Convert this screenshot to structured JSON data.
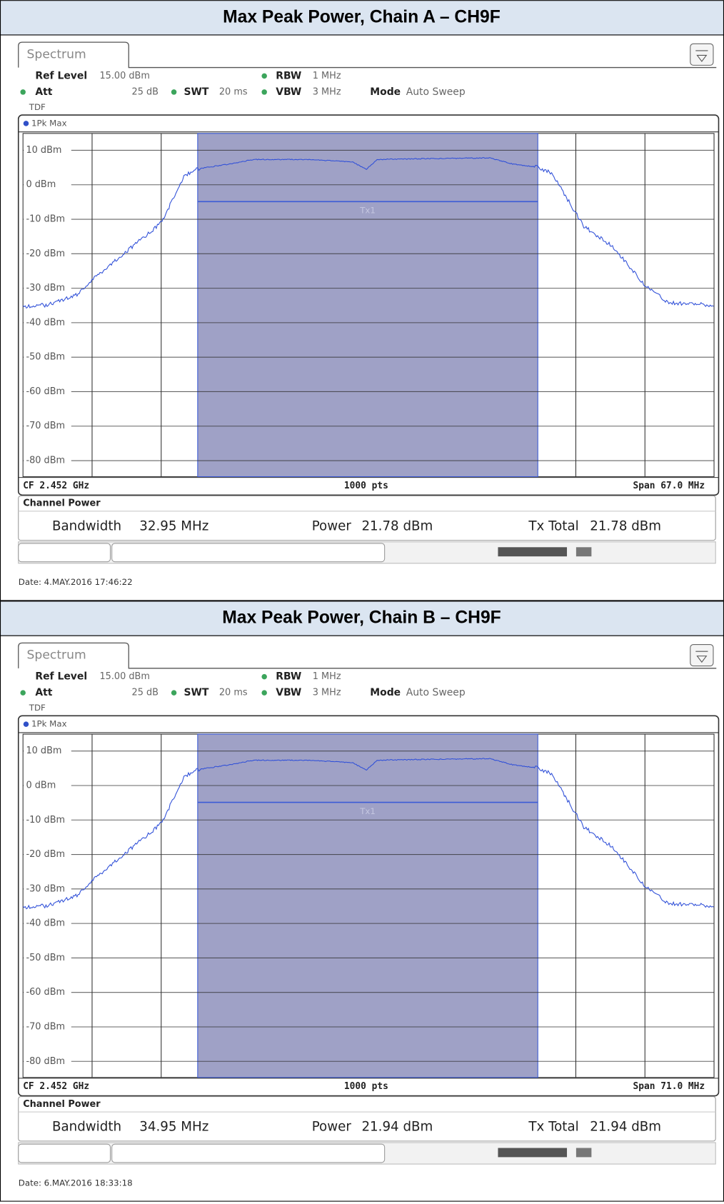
{
  "panels": [
    {
      "title": "Max Peak Power, Chain A – CH9F",
      "tab": "Spectrum",
      "ref_level_label": "Ref Level",
      "ref_level": "15.00 dBm",
      "att_label": "Att",
      "att": "25 dB",
      "swt_label": "SWT",
      "swt": "20 ms",
      "rbw_label": "RBW",
      "rbw": "1 MHz",
      "vbw_label": "VBW",
      "vbw": "3 MHz",
      "mode_label": "Mode",
      "mode": "Auto Sweep",
      "tdf": "TDF",
      "trace": "1Pk Max",
      "y_labels": [
        "10 dBm",
        "0 dBm",
        "-10 dBm",
        "-20 dBm",
        "-30 dBm",
        "-40 dBm",
        "-50 dBm",
        "-60 dBm",
        "-70 dBm",
        "-80 dBm"
      ],
      "marker": "Tx1",
      "cf": "CF 2.452 GHz",
      "points": "1000 pts",
      "span": "Span 67.0 MHz",
      "result_title": "Channel Power",
      "bandwidth_label": "Bandwidth",
      "bandwidth": "32.95 MHz",
      "power_label": "Power",
      "power": "21.78 dBm",
      "tx_total_label": "Tx Total",
      "tx_total": "21.78 dBm",
      "date": "Date: 4.MAY.2016 17:46:22"
    },
    {
      "title": "Max Peak Power, Chain B – CH9F",
      "tab": "Spectrum",
      "ref_level_label": "Ref Level",
      "ref_level": "15.00 dBm",
      "att_label": "Att",
      "att": "25 dB",
      "swt_label": "SWT",
      "swt": "20 ms",
      "rbw_label": "RBW",
      "rbw": "1 MHz",
      "vbw_label": "VBW",
      "vbw": "3 MHz",
      "mode_label": "Mode",
      "mode": "Auto Sweep",
      "tdf": "TDF",
      "trace": "1Pk Max",
      "y_labels": [
        "10 dBm",
        "0 dBm",
        "-10 dBm",
        "-20 dBm",
        "-30 dBm",
        "-40 dBm",
        "-50 dBm",
        "-60 dBm",
        "-70 dBm",
        "-80 dBm"
      ],
      "marker": "Tx1",
      "cf": "CF 2.452 GHz",
      "points": "1000 pts",
      "span": "Span 71.0 MHz",
      "result_title": "Channel Power",
      "bandwidth_label": "Bandwidth",
      "bandwidth": "34.95 MHz",
      "power_label": "Power",
      "power": "21.94 dBm",
      "tx_total_label": "Tx Total",
      "tx_total": "21.94 dBm",
      "date": "Date: 6.MAY.2016 18:33:18"
    }
  ]
}
